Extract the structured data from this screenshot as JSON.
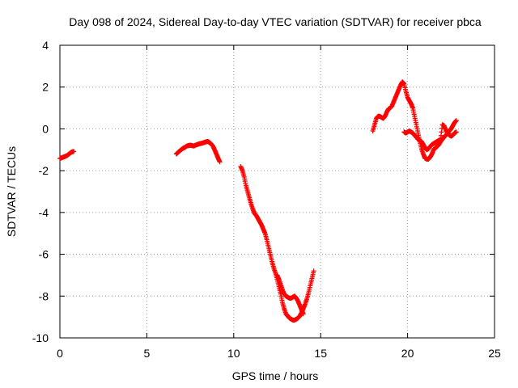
{
  "chart_data": {
    "type": "scatter",
    "title": "Day 098 of 2024, Sidereal Day-to-day VTEC variation (SDTVAR) for receiver pbca",
    "xlabel": "GPS time / hours",
    "ylabel": "SDTVAR / TECUs",
    "xlim": [
      0,
      25
    ],
    "ylim": [
      -10,
      4
    ],
    "xticks": [
      0,
      5,
      10,
      15,
      20,
      25
    ],
    "yticks": [
      -10,
      -8,
      -6,
      -4,
      -2,
      0,
      2,
      4
    ],
    "grid": true,
    "marker": "+",
    "series_color": "#ff0000",
    "series": [
      {
        "name": "segment-1",
        "x": [
          0.0,
          0.1,
          0.2,
          0.3,
          0.4,
          0.5,
          0.6,
          0.7,
          0.8
        ],
        "y": [
          -1.42,
          -1.38,
          -1.35,
          -1.32,
          -1.28,
          -1.22,
          -1.15,
          -1.1,
          -1.08
        ]
      },
      {
        "name": "segment-2",
        "x": [
          6.7,
          6.8,
          6.9,
          7.0,
          7.1,
          7.2,
          7.3,
          7.4,
          7.5,
          7.6,
          7.7,
          7.8,
          7.9,
          8.0,
          8.1,
          8.2,
          8.3,
          8.4,
          8.5,
          8.6,
          8.7,
          8.8,
          8.9,
          9.0,
          9.1,
          9.2
        ],
        "y": [
          -1.2,
          -1.12,
          -1.05,
          -0.98,
          -0.92,
          -0.88,
          -0.82,
          -0.8,
          -0.78,
          -0.8,
          -0.82,
          -0.78,
          -0.75,
          -0.72,
          -0.7,
          -0.68,
          -0.65,
          -0.62,
          -0.6,
          -0.65,
          -0.72,
          -0.82,
          -1.0,
          -1.2,
          -1.4,
          -1.58
        ]
      },
      {
        "name": "segment-3",
        "x": [
          10.4,
          10.5,
          10.6,
          10.7,
          10.8,
          10.9,
          11.0,
          11.1,
          11.2,
          11.3,
          11.4,
          11.5,
          11.6,
          11.7,
          11.8,
          11.9,
          12.0,
          12.1,
          12.2,
          12.3,
          12.4,
          12.5,
          12.6,
          12.7,
          12.8,
          12.9,
          13.0,
          13.1,
          13.2,
          13.3,
          13.4,
          13.5,
          13.6,
          13.7,
          13.8,
          13.9,
          14.0,
          14.1,
          14.2,
          14.3,
          14.4,
          14.5,
          14.6
        ],
        "y": [
          -1.8,
          -2.0,
          -2.3,
          -2.7,
          -3.0,
          -3.3,
          -3.6,
          -3.85,
          -4.05,
          -4.15,
          -4.3,
          -4.45,
          -4.6,
          -4.8,
          -5.0,
          -5.3,
          -5.65,
          -6.0,
          -6.35,
          -6.65,
          -6.9,
          -7.2,
          -7.55,
          -7.9,
          -8.3,
          -8.6,
          -8.85,
          -8.95,
          -9.05,
          -9.1,
          -9.15,
          -9.15,
          -9.1,
          -9.05,
          -8.95,
          -8.8,
          -8.6,
          -8.4,
          -8.15,
          -7.85,
          -7.5,
          -7.15,
          -6.8
        ]
      },
      {
        "name": "segment-3-upper",
        "x": [
          12.5,
          12.6,
          12.7,
          12.8,
          12.9,
          13.0,
          13.1,
          13.2,
          13.3,
          13.4,
          13.5,
          13.6,
          13.7,
          13.8,
          13.9,
          14.0
        ],
        "y": [
          -7.0,
          -7.2,
          -7.45,
          -7.7,
          -7.9,
          -8.0,
          -8.05,
          -8.1,
          -8.1,
          -8.05,
          -8.0,
          -8.1,
          -8.25,
          -8.45,
          -8.65,
          -8.85
        ]
      },
      {
        "name": "segment-4",
        "x": [
          18.0,
          18.1,
          18.2,
          18.3,
          18.4,
          18.5,
          18.6,
          18.7,
          18.8,
          18.9,
          19.0,
          19.1,
          19.2,
          19.3,
          19.4,
          19.5,
          19.6,
          19.7,
          19.8,
          19.9,
          20.0,
          20.1,
          20.2,
          20.3,
          20.4,
          20.5,
          20.6,
          20.7,
          20.8,
          20.9,
          21.0,
          21.1,
          21.2,
          21.3,
          21.4,
          21.5,
          21.6,
          21.7,
          21.8,
          21.9,
          22.0,
          22.1,
          22.2,
          22.3,
          22.4,
          22.5,
          22.6,
          22.7,
          22.8
        ],
        "y": [
          -0.1,
          0.2,
          0.5,
          0.6,
          0.6,
          0.55,
          0.5,
          0.6,
          0.8,
          0.95,
          1.0,
          1.1,
          1.3,
          1.5,
          1.7,
          1.9,
          2.1,
          2.25,
          2.15,
          1.8,
          1.5,
          1.35,
          1.2,
          1.0,
          0.6,
          0.2,
          -0.2,
          -0.6,
          -0.95,
          -1.2,
          -1.4,
          -1.45,
          -1.45,
          -1.35,
          -1.2,
          -1.0,
          -0.9,
          -0.85,
          -0.75,
          -0.6,
          -0.5,
          -0.4,
          -0.3,
          -0.2,
          -0.1,
          0.0,
          0.15,
          0.3,
          0.4
        ]
      },
      {
        "name": "segment-4-lower",
        "x": [
          19.8,
          19.9,
          20.0,
          20.1,
          20.2,
          20.3,
          20.4,
          20.5,
          20.6,
          20.7,
          20.8,
          20.9,
          21.0,
          21.1,
          21.2,
          21.3,
          21.4,
          21.5,
          21.6,
          21.7,
          21.8,
          21.9,
          22.0,
          22.1,
          22.2,
          22.3,
          22.4,
          22.5,
          22.6,
          22.7,
          22.8
        ],
        "y": [
          -0.15,
          -0.2,
          -0.15,
          -0.1,
          -0.15,
          -0.2,
          -0.3,
          -0.4,
          -0.5,
          -0.55,
          -0.6,
          -0.75,
          -0.9,
          -1.0,
          -0.95,
          -0.85,
          -0.75,
          -0.7,
          -0.65,
          -0.6,
          -0.55,
          -0.5,
          0.2,
          0.15,
          -0.05,
          -0.2,
          -0.3,
          -0.35,
          -0.3,
          -0.2,
          -0.15
        ]
      }
    ]
  }
}
